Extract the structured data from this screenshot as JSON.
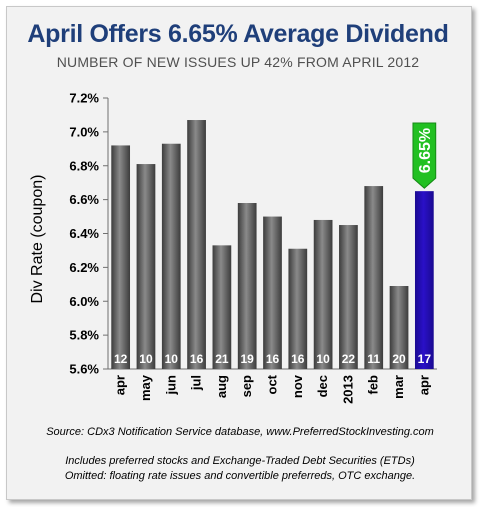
{
  "colors": {
    "bar": "#5a5a5a",
    "highlight_bar": "#2a10c8",
    "callout": "#22c022",
    "title": "#1f3f7a"
  },
  "notes": {
    "source": "Source:  CDx3 Notification Service database, www.PreferredStockInvesting.com",
    "line1": "Includes preferred stocks and Exchange-Traded Debt Securities (ETDs)",
    "line2": "Omitted: floating rate issues and convertible preferreds, OTC exchange."
  },
  "chart_data": {
    "type": "bar",
    "title": "April Offers 6.65% Average Dividend",
    "subtitle": "NUMBER OF NEW ISSUES UP 42% FROM APRIL 2012",
    "xlabel": "",
    "ylabel": "Div Rate (coupon)",
    "ylim": [
      5.6,
      7.2
    ],
    "yticks": [
      "5.6%",
      "5.8%",
      "6.0%",
      "6.2%",
      "6.4%",
      "6.6%",
      "6.8%",
      "7.0%",
      "7.2%"
    ],
    "grid": false,
    "categories": [
      "apr",
      "may",
      "jun",
      "jul",
      "aug",
      "sep",
      "oct",
      "nov",
      "dec",
      "2013",
      "feb",
      "mar",
      "apr"
    ],
    "values": [
      6.92,
      6.81,
      6.93,
      7.07,
      6.33,
      6.58,
      6.5,
      6.31,
      6.48,
      6.45,
      6.68,
      6.09,
      6.65
    ],
    "issue_counts": [
      "12",
      "10",
      "10",
      "16",
      "21",
      "19",
      "16",
      "16",
      "10",
      "22",
      "11",
      "20",
      "17"
    ],
    "highlight_index": 12,
    "callout_label": "6.65%"
  }
}
